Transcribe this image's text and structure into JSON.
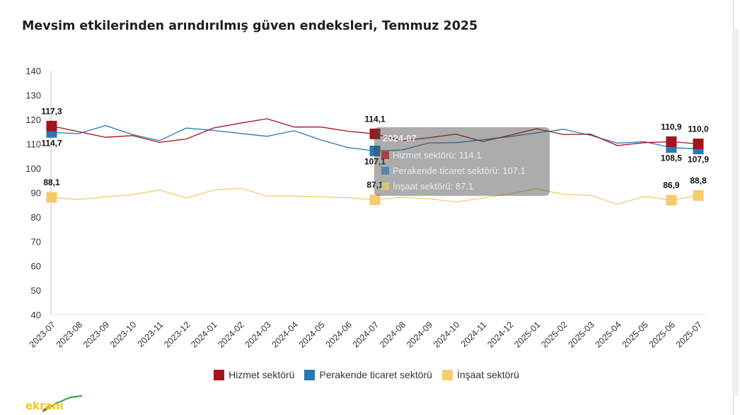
{
  "chart_data": {
    "type": "line",
    "title": "Mevsim etkilerinden arındırılmış güven endeksleri, Temmuz 2025",
    "xlabel": "",
    "ylabel": "",
    "ylim": [
      40,
      140
    ],
    "yticks": [
      "40",
      "50",
      "60",
      "70",
      "80",
      "90",
      "100",
      "110",
      "120",
      "130",
      "140"
    ],
    "categories": [
      "2023-07",
      "2023-08",
      "2023-09",
      "2023-10",
      "2023-11",
      "2023-12",
      "2024-01",
      "2024-02",
      "2024-03",
      "2024-04",
      "2024-05",
      "2024-06",
      "2024-07",
      "2024-08",
      "2024-09",
      "2024-10",
      "2024-11",
      "2024-12",
      "2025-01",
      "2025-02",
      "2025-03",
      "2025-04",
      "2025-05",
      "2025-06",
      "2025-07"
    ],
    "grid": false,
    "legend_position": "bottom",
    "series": [
      {
        "name": "Hizmet sektörü",
        "color": "#a3141e",
        "values": [
          117.3,
          115.0,
          112.7,
          113.4,
          110.6,
          112.0,
          116.5,
          118.5,
          120.3,
          116.9,
          116.9,
          115.2,
          114.1,
          111.3,
          112.5,
          114.0,
          111.0,
          113.5,
          116.2,
          113.8,
          114.0,
          109.3,
          110.5,
          110.9,
          110.0
        ],
        "highlighted": [
          {
            "category": "2023-07",
            "label": "117,3"
          },
          {
            "category": "2024-07",
            "label": "114,1"
          },
          {
            "category": "2025-06",
            "label": "110,9"
          },
          {
            "category": "2025-07",
            "label": "110,0"
          }
        ]
      },
      {
        "name": "Perakende ticaret sektörü",
        "color": "#2878b5",
        "values": [
          114.7,
          114.2,
          117.5,
          113.8,
          111.3,
          116.5,
          115.5,
          114.3,
          113.1,
          115.4,
          111.6,
          108.5,
          107.1,
          107.5,
          110.4,
          110.5,
          111.7,
          113.0,
          114.5,
          116.0,
          113.5,
          110.3,
          110.9,
          108.5,
          107.9
        ],
        "highlighted": [
          {
            "category": "2023-07",
            "label": "114,7"
          },
          {
            "category": "2024-07",
            "label": "107,1"
          },
          {
            "category": "2025-06",
            "label": "108,5"
          },
          {
            "category": "2025-07",
            "label": "107,9"
          }
        ]
      },
      {
        "name": "İnşaat sektörü",
        "color": "#f5cb6c",
        "values": [
          88.1,
          87.2,
          88.3,
          89.2,
          91.1,
          87.8,
          91.0,
          91.8,
          88.6,
          88.6,
          88.3,
          87.9,
          87.1,
          88.1,
          87.5,
          86.2,
          87.8,
          89.5,
          91.6,
          89.3,
          88.9,
          85.2,
          88.5,
          86.9,
          88.8
        ],
        "highlighted": [
          {
            "category": "2023-07",
            "label": "88,1"
          },
          {
            "category": "2024-07",
            "label": "87,1"
          },
          {
            "category": "2025-06",
            "label": "86,9"
          },
          {
            "category": "2025-07",
            "label": "88,8"
          }
        ]
      }
    ],
    "tooltip": {
      "category": "2024-07",
      "lines": [
        "Hizmet sektörü: 114.1",
        "Perakende ticaret sektörü: 107.1",
        "İnşaat sektörü: 87.1"
      ]
    }
  },
  "legend": [
    {
      "label": "Hizmet sektörü",
      "color": "#a3141e"
    },
    {
      "label": "Perakende ticaret sektörü",
      "color": "#2878b5"
    },
    {
      "label": "İnşaat sektörü",
      "color": "#f5cb6c"
    }
  ],
  "logo": {
    "text": "ekranı",
    "color": "#f2c71a"
  }
}
